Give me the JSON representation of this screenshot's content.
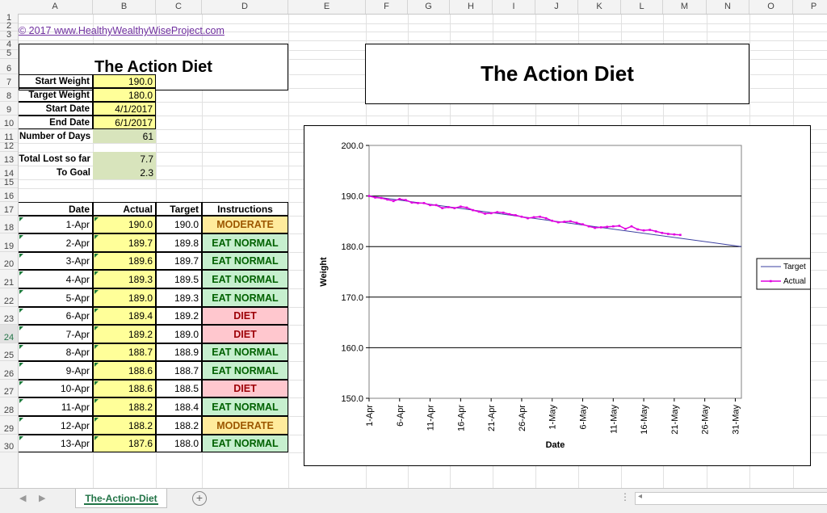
{
  "columns": [
    "A",
    "B",
    "C",
    "D",
    "E",
    "F",
    "G",
    "H",
    "I",
    "J",
    "K",
    "L",
    "M",
    "N",
    "O",
    "P"
  ],
  "rows": [
    "1",
    "2",
    "3",
    "4",
    "5",
    "6",
    "7",
    "8",
    "9",
    "10",
    "11",
    "12",
    "13",
    "14",
    "15",
    "16",
    "17",
    "18",
    "19",
    "20",
    "21",
    "22",
    "23",
    "24",
    "25",
    "26",
    "27",
    "28",
    "29",
    "30"
  ],
  "link_text": "© 2017 www.HealthyWealthyWiseProject.com",
  "title": "The Action Diet",
  "chart_title": "The Action Diet",
  "params": [
    {
      "label": "Start Weight",
      "value": "190.0"
    },
    {
      "label": "Target Weight",
      "value": "180.0"
    },
    {
      "label": "Start Date",
      "value": "4/1/2017"
    },
    {
      "label": "End Date",
      "value": "6/1/2017"
    }
  ],
  "days": {
    "label": "Number of Days",
    "value": "61"
  },
  "lost": {
    "label": "Total Lost so far",
    "value": "7.7"
  },
  "togoal": {
    "label": "To Goal",
    "value": "2.3"
  },
  "table_headers": {
    "date": "Date",
    "actual": "Actual",
    "target": "Target",
    "instructions": "Instructions"
  },
  "table_rows": [
    {
      "date": "1-Apr",
      "actual": "190.0",
      "target": "190.0",
      "instr": "MODERATE",
      "kind": "moderate"
    },
    {
      "date": "2-Apr",
      "actual": "189.7",
      "target": "189.8",
      "instr": "EAT NORMAL",
      "kind": "normal"
    },
    {
      "date": "3-Apr",
      "actual": "189.6",
      "target": "189.7",
      "instr": "EAT NORMAL",
      "kind": "normal"
    },
    {
      "date": "4-Apr",
      "actual": "189.3",
      "target": "189.5",
      "instr": "EAT NORMAL",
      "kind": "normal"
    },
    {
      "date": "5-Apr",
      "actual": "189.0",
      "target": "189.3",
      "instr": "EAT NORMAL",
      "kind": "normal"
    },
    {
      "date": "6-Apr",
      "actual": "189.4",
      "target": "189.2",
      "instr": "DIET",
      "kind": "diet"
    },
    {
      "date": "7-Apr",
      "actual": "189.2",
      "target": "189.0",
      "instr": "DIET",
      "kind": "diet"
    },
    {
      "date": "8-Apr",
      "actual": "188.7",
      "target": "188.9",
      "instr": "EAT NORMAL",
      "kind": "normal"
    },
    {
      "date": "9-Apr",
      "actual": "188.6",
      "target": "188.7",
      "instr": "EAT NORMAL",
      "kind": "normal"
    },
    {
      "date": "10-Apr",
      "actual": "188.6",
      "target": "188.5",
      "instr": "DIET",
      "kind": "diet"
    },
    {
      "date": "11-Apr",
      "actual": "188.2",
      "target": "188.4",
      "instr": "EAT NORMAL",
      "kind": "normal"
    },
    {
      "date": "12-Apr",
      "actual": "188.2",
      "target": "188.2",
      "instr": "MODERATE",
      "kind": "moderate"
    },
    {
      "date": "13-Apr",
      "actual": "187.6",
      "target": "188.0",
      "instr": "EAT NORMAL",
      "kind": "normal"
    }
  ],
  "sheet_tab": "The-Action-Diet",
  "colors": {
    "yellow": "#ffff99",
    "green": "#d8e4bc",
    "target_line": "#3b3fa0",
    "actual_line": "#e000e0",
    "link": "#7030a0"
  },
  "chart_data": {
    "type": "line",
    "ylabel": "Weight",
    "xlabel": "Date",
    "ylim": [
      150,
      200
    ],
    "yticks": [
      "200.0",
      "190.0",
      "180.0",
      "170.0",
      "160.0",
      "150.0"
    ],
    "xticks": [
      "1-Apr",
      "6-Apr",
      "11-Apr",
      "16-Apr",
      "21-Apr",
      "26-Apr",
      "1-May",
      "6-May",
      "11-May",
      "16-May",
      "21-May",
      "26-May",
      "31-May"
    ],
    "x_range": [
      "2017-04-01",
      "2017-06-01"
    ],
    "legend": "right",
    "series": [
      {
        "name": "Target",
        "dates": [
          "2017-04-01",
          "2017-06-01"
        ],
        "values": [
          190.0,
          180.0
        ]
      },
      {
        "name": "Actual",
        "start": "2017-04-01",
        "values": [
          190.0,
          189.7,
          189.6,
          189.3,
          189.0,
          189.4,
          189.2,
          188.7,
          188.6,
          188.6,
          188.2,
          188.2,
          187.6,
          187.8,
          187.6,
          187.9,
          187.7,
          187.2,
          186.9,
          186.5,
          186.6,
          186.8,
          186.7,
          186.4,
          186.2,
          185.9,
          185.6,
          185.8,
          185.9,
          185.6,
          185.1,
          184.8,
          184.9,
          185.0,
          184.7,
          184.4,
          184.0,
          183.7,
          183.8,
          183.9,
          184.0,
          184.1,
          183.5,
          184.0,
          183.4,
          183.2,
          183.3,
          183.0,
          182.7,
          182.5,
          182.4,
          182.3
        ]
      }
    ]
  }
}
